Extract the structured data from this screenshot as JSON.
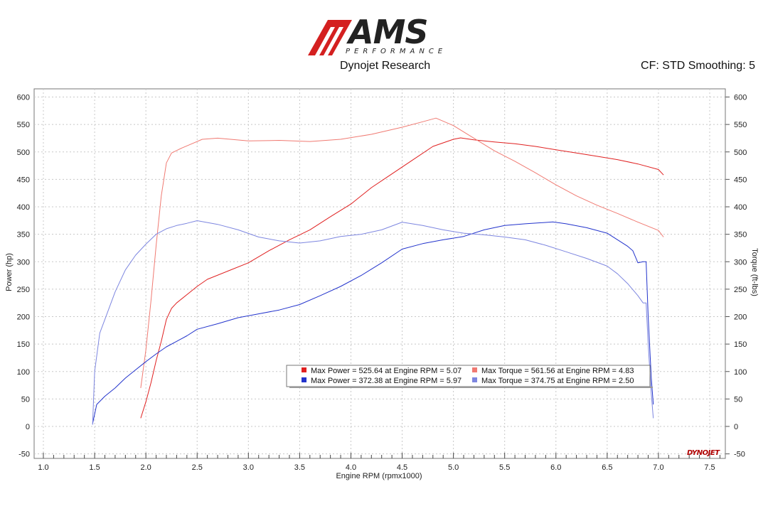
{
  "header": {
    "logo_text": "AMS",
    "logo_subtext": "PERFORMANCE",
    "subtitle": "Dynojet Research",
    "settings": "CF: STD Smoothing: 5",
    "brand_mark": "DYNOJET"
  },
  "colors": {
    "power_red": "#e02020",
    "torque_red": "#f07a72",
    "power_blue": "#2233cc",
    "torque_blue": "#7d86e0",
    "logo_red": "#d42020"
  },
  "chart_data": {
    "type": "line",
    "xlabel": "Engine RPM (rpmx1000)",
    "ylabel": "Power (hp)",
    "y2label": "Torque (ft-lbs)",
    "xlim": [
      1.0,
      7.6
    ],
    "ylim": [
      -50,
      610
    ],
    "x_ticks": [
      "1.0",
      "1.5",
      "2.0",
      "2.5",
      "3.0",
      "3.5",
      "4.0",
      "4.5",
      "5.0",
      "5.5",
      "6.0",
      "6.5",
      "7.0",
      "7.5"
    ],
    "y_ticks": [
      "-50",
      "0",
      "50",
      "100",
      "150",
      "200",
      "250",
      "300",
      "350",
      "400",
      "450",
      "500",
      "550",
      "600"
    ],
    "grid": true,
    "legend_position": "bottom-right",
    "legend": [
      {
        "label": "Max Power = 525.64 at Engine RPM = 5.07",
        "color": "#e02020"
      },
      {
        "label": "Max Torque = 561.56 at Engine RPM = 4.83",
        "color": "#f07a72"
      },
      {
        "label": "Max Power = 372.38 at Engine RPM = 5.97",
        "color": "#2233cc"
      },
      {
        "label": "Max Torque = 374.75 at Engine RPM = 2.50",
        "color": "#7d86e0"
      }
    ],
    "series": [
      {
        "color": "#e02020",
        "points": [
          [
            1.95,
            15
          ],
          [
            2.0,
            45
          ],
          [
            2.05,
            80
          ],
          [
            2.1,
            120
          ],
          [
            2.15,
            155
          ],
          [
            2.2,
            195
          ],
          [
            2.25,
            215
          ],
          [
            2.3,
            225
          ],
          [
            2.4,
            240
          ],
          [
            2.5,
            255
          ],
          [
            2.6,
            268
          ],
          [
            2.8,
            283
          ],
          [
            3.0,
            298
          ],
          [
            3.2,
            320
          ],
          [
            3.4,
            340
          ],
          [
            3.6,
            358
          ],
          [
            3.8,
            382
          ],
          [
            4.0,
            405
          ],
          [
            4.2,
            435
          ],
          [
            4.4,
            460
          ],
          [
            4.6,
            485
          ],
          [
            4.8,
            510
          ],
          [
            5.0,
            523
          ],
          [
            5.07,
            525.6
          ],
          [
            5.2,
            522
          ],
          [
            5.4,
            518
          ],
          [
            5.6,
            515
          ],
          [
            5.8,
            510
          ],
          [
            6.0,
            504
          ],
          [
            6.2,
            498
          ],
          [
            6.4,
            492
          ],
          [
            6.6,
            486
          ],
          [
            6.8,
            478
          ],
          [
            7.0,
            468
          ],
          [
            7.05,
            458
          ]
        ]
      },
      {
        "color": "#f07a72",
        "points": [
          [
            1.95,
            70
          ],
          [
            2.0,
            140
          ],
          [
            2.05,
            230
          ],
          [
            2.1,
            330
          ],
          [
            2.15,
            420
          ],
          [
            2.2,
            480
          ],
          [
            2.25,
            498
          ],
          [
            2.35,
            507
          ],
          [
            2.45,
            515
          ],
          [
            2.55,
            523
          ],
          [
            2.7,
            525
          ],
          [
            3.0,
            520
          ],
          [
            3.3,
            521
          ],
          [
            3.6,
            519
          ],
          [
            3.9,
            523
          ],
          [
            4.2,
            532
          ],
          [
            4.5,
            545
          ],
          [
            4.7,
            555
          ],
          [
            4.83,
            561.6
          ],
          [
            5.0,
            548
          ],
          [
            5.2,
            525
          ],
          [
            5.4,
            502
          ],
          [
            5.6,
            483
          ],
          [
            5.8,
            462
          ],
          [
            6.0,
            440
          ],
          [
            6.2,
            420
          ],
          [
            6.4,
            403
          ],
          [
            6.6,
            388
          ],
          [
            6.8,
            372
          ],
          [
            7.0,
            357
          ],
          [
            7.05,
            345
          ]
        ]
      },
      {
        "color": "#2233cc",
        "points": [
          [
            1.48,
            5
          ],
          [
            1.52,
            40
          ],
          [
            1.6,
            55
          ],
          [
            1.7,
            70
          ],
          [
            1.8,
            88
          ],
          [
            1.9,
            103
          ],
          [
            2.0,
            118
          ],
          [
            2.1,
            132
          ],
          [
            2.2,
            145
          ],
          [
            2.3,
            155
          ],
          [
            2.4,
            165
          ],
          [
            2.5,
            177
          ],
          [
            2.7,
            187
          ],
          [
            2.9,
            198
          ],
          [
            3.1,
            205
          ],
          [
            3.3,
            212
          ],
          [
            3.5,
            222
          ],
          [
            3.7,
            238
          ],
          [
            3.9,
            255
          ],
          [
            4.1,
            275
          ],
          [
            4.3,
            298
          ],
          [
            4.5,
            323
          ],
          [
            4.7,
            333
          ],
          [
            4.9,
            340
          ],
          [
            5.1,
            346
          ],
          [
            5.3,
            358
          ],
          [
            5.5,
            366
          ],
          [
            5.7,
            369
          ],
          [
            5.97,
            372.4
          ],
          [
            6.1,
            369
          ],
          [
            6.3,
            362
          ],
          [
            6.5,
            352
          ],
          [
            6.7,
            328
          ],
          [
            6.75,
            320
          ],
          [
            6.8,
            298
          ],
          [
            6.85,
            300
          ],
          [
            6.88,
            300
          ],
          [
            6.9,
            200
          ],
          [
            6.93,
            90
          ],
          [
            6.95,
            40
          ]
        ]
      },
      {
        "color": "#7d86e0",
        "points": [
          [
            1.48,
            3
          ],
          [
            1.5,
            100
          ],
          [
            1.55,
            170
          ],
          [
            1.6,
            195
          ],
          [
            1.7,
            245
          ],
          [
            1.8,
            285
          ],
          [
            1.9,
            312
          ],
          [
            2.0,
            332
          ],
          [
            2.1,
            350
          ],
          [
            2.2,
            360
          ],
          [
            2.3,
            366
          ],
          [
            2.4,
            370
          ],
          [
            2.5,
            374.8
          ],
          [
            2.7,
            368
          ],
          [
            2.9,
            358
          ],
          [
            3.1,
            345
          ],
          [
            3.3,
            338
          ],
          [
            3.5,
            334
          ],
          [
            3.7,
            338
          ],
          [
            3.9,
            346
          ],
          [
            4.1,
            350
          ],
          [
            4.3,
            358
          ],
          [
            4.5,
            372
          ],
          [
            4.7,
            366
          ],
          [
            4.9,
            358
          ],
          [
            5.1,
            352
          ],
          [
            5.3,
            349
          ],
          [
            5.5,
            345
          ],
          [
            5.7,
            340
          ],
          [
            5.9,
            330
          ],
          [
            6.1,
            318
          ],
          [
            6.3,
            306
          ],
          [
            6.5,
            292
          ],
          [
            6.6,
            278
          ],
          [
            6.7,
            260
          ],
          [
            6.8,
            238
          ],
          [
            6.85,
            225
          ],
          [
            6.88,
            225
          ],
          [
            6.9,
            150
          ],
          [
            6.93,
            60
          ],
          [
            6.95,
            15
          ]
        ]
      }
    ]
  }
}
